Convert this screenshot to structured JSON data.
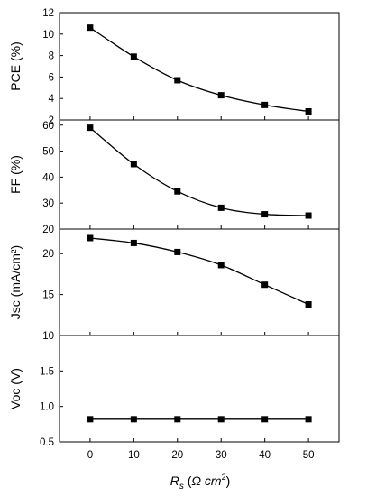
{
  "chart_data": [
    {
      "type": "line",
      "ylabel": "PCE (%)",
      "ylim": [
        2,
        12
      ],
      "yticks": [
        "2",
        "4",
        "6",
        "8",
        "10",
        "12"
      ],
      "x": [
        0,
        10,
        20,
        30,
        40,
        50
      ],
      "series": [
        {
          "values": [
            10.6,
            7.9,
            5.7,
            4.3,
            3.4,
            2.8
          ]
        }
      ],
      "marker": "square",
      "color": "#000000"
    },
    {
      "type": "line",
      "ylabel": "FF (%)",
      "ylim": [
        20,
        62
      ],
      "yticks": [
        "20",
        "30",
        "40",
        "50",
        "60"
      ],
      "x": [
        0,
        10,
        20,
        30,
        40,
        50
      ],
      "series": [
        {
          "values": [
            59,
            45,
            34.5,
            28.2,
            25.7,
            25.2
          ]
        }
      ],
      "marker": "square",
      "color": "#000000"
    },
    {
      "type": "line",
      "ylabel": "Jsc (mA/cm²)",
      "ylim": [
        10,
        23
      ],
      "yticks": [
        "10",
        "15",
        "20"
      ],
      "x": [
        0,
        10,
        20,
        30,
        40,
        50
      ],
      "series": [
        {
          "values": [
            21.9,
            21.3,
            20.2,
            18.6,
            16.2,
            13.8
          ]
        }
      ],
      "marker": "square",
      "color": "#000000"
    },
    {
      "type": "line",
      "ylabel": "Voc (V)",
      "ylim": [
        0.5,
        2.0
      ],
      "yticks": [
        "0.5",
        "1.0",
        "1.5"
      ],
      "x": [
        0,
        10,
        20,
        30,
        40,
        50
      ],
      "series": [
        {
          "values": [
            0.82,
            0.82,
            0.82,
            0.82,
            0.82,
            0.82
          ]
        }
      ],
      "marker": "square",
      "color": "#000000"
    }
  ],
  "x_axis": {
    "label": "Rs (Ω cm²)",
    "label_parts": {
      "main": "R",
      "sub": "s",
      "open": " (",
      "units": "Ω cm",
      "sup": "2",
      "close": ")"
    },
    "ticks": [
      "0",
      "10",
      "20",
      "30",
      "40",
      "50"
    ],
    "xlim": [
      -7,
      57
    ]
  }
}
